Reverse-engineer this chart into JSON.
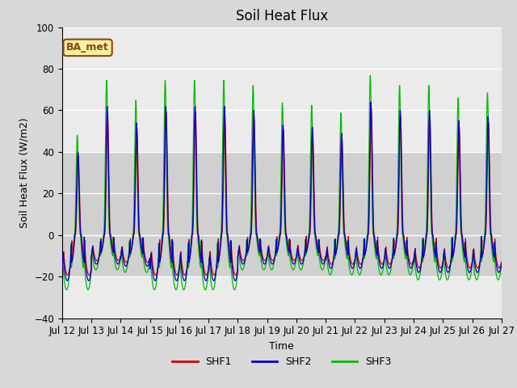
{
  "title": "Soil Heat Flux",
  "xlabel": "Time",
  "ylabel": "Soil Heat Flux (W/m2)",
  "ylim": [
    -40,
    100
  ],
  "yticks": [
    -40,
    -20,
    0,
    20,
    40,
    60,
    80,
    100
  ],
  "fig_bg_color": "#d8d8d8",
  "plot_bg_color": "#ebebeb",
  "shaded_band_color": "#d0d0d0",
  "grid_color": "white",
  "annotation_label": "BA_met",
  "annotation_bg": "#f5f0a0",
  "annotation_border": "#8b4513",
  "line_colors": {
    "SHF1": "#cc0000",
    "SHF2": "#0000cc",
    "SHF3": "#00bb00"
  },
  "n_days": 15,
  "start_day": 12,
  "shaded_band": [
    -20,
    40
  ],
  "points_per_day": 288,
  "day_peaks_shf2": [
    40,
    62,
    54,
    62,
    62,
    62,
    60,
    53,
    52,
    49,
    64,
    60,
    60,
    55,
    57
  ],
  "day_valleys_shf2": [
    -22,
    -14,
    -15,
    -22,
    -22,
    -22,
    -14,
    -14,
    -14,
    -16,
    -16,
    -16,
    -18,
    -18,
    -18
  ],
  "shf3_peak_scale": 1.2,
  "shf3_valley_scale": 1.2,
  "shf1_peak_scale": 0.95,
  "shf1_valley_scale": 0.88
}
